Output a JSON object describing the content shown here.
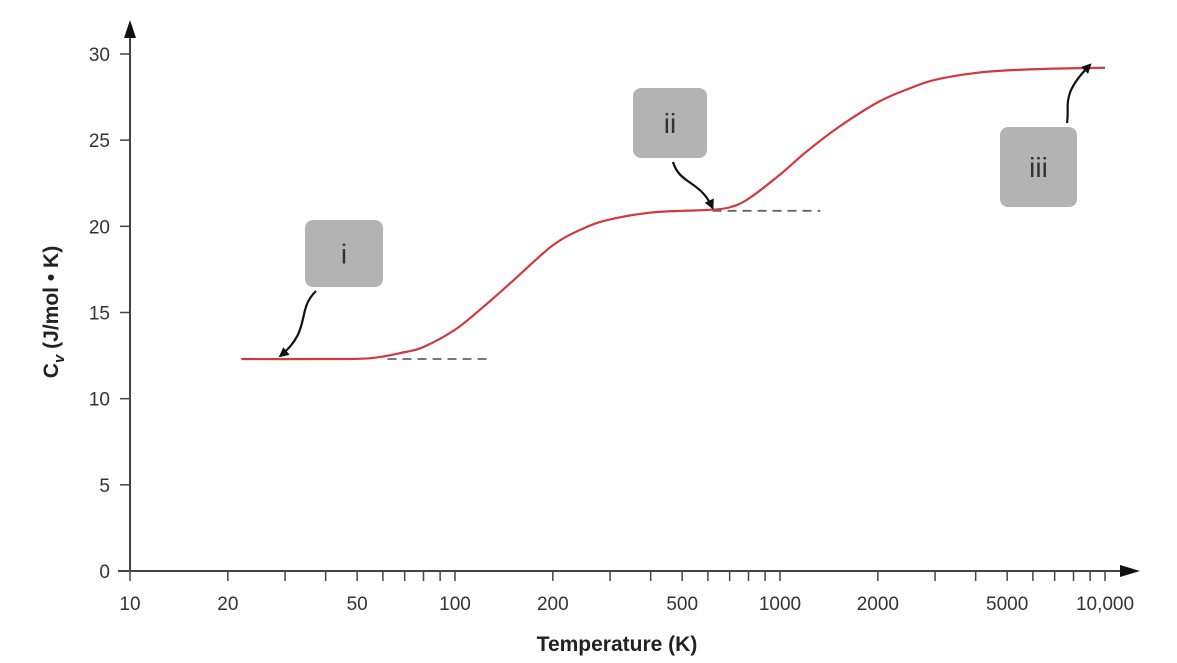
{
  "chart_data": {
    "type": "line",
    "title": "",
    "xlabel": "Temperature (K)",
    "ylabel_main": "C",
    "ylabel_sub": "v",
    "ylabel_rest": " (J/mol • K)",
    "x_scale": "log",
    "xlim": [
      10,
      10000
    ],
    "ylim": [
      0,
      30
    ],
    "grid": false,
    "x_ticks": [
      {
        "value": 10,
        "label": "10"
      },
      {
        "value": 20,
        "label": "20"
      },
      {
        "value": 50,
        "label": "50"
      },
      {
        "value": 100,
        "label": "100"
      },
      {
        "value": 200,
        "label": "200"
      },
      {
        "value": 500,
        "label": "500"
      },
      {
        "value": 1000,
        "label": "1000"
      },
      {
        "value": 2000,
        "label": "2000"
      },
      {
        "value": 5000,
        "label": "5000"
      },
      {
        "value": 10000,
        "label": "10,000"
      }
    ],
    "x_minor_ticks": [
      30,
      40,
      60,
      70,
      80,
      90,
      300,
      400,
      600,
      700,
      800,
      900,
      3000,
      4000,
      6000,
      7000,
      8000,
      9000
    ],
    "y_ticks": [
      {
        "value": 0,
        "label": "0"
      },
      {
        "value": 5,
        "label": "5"
      },
      {
        "value": 10,
        "label": "10"
      },
      {
        "value": 15,
        "label": "15"
      },
      {
        "value": 20,
        "label": "20"
      },
      {
        "value": 25,
        "label": "25"
      },
      {
        "value": 30,
        "label": "30"
      }
    ],
    "series": [
      {
        "color": "#d0393f",
        "x": [
          22,
          40,
          55,
          70,
          80,
          100,
          120,
          150,
          200,
          250,
          300,
          400,
          500,
          600,
          700,
          800,
          1000,
          1200,
          1500,
          2000,
          2500,
          3000,
          4000,
          5000,
          7000,
          10000
        ],
        "y": [
          12.3,
          12.3,
          12.35,
          12.7,
          13.0,
          14.0,
          15.2,
          16.8,
          18.9,
          19.9,
          20.4,
          20.8,
          20.9,
          20.95,
          21.1,
          21.6,
          23.0,
          24.3,
          25.7,
          27.2,
          28.0,
          28.5,
          28.9,
          29.05,
          29.15,
          29.2
        ]
      }
    ],
    "reference_lines": [
      {
        "y": 12.3,
        "x_from": 62,
        "x_to": 125,
        "style": "dashed",
        "color": "#666666"
      },
      {
        "y": 20.9,
        "x_from": 620,
        "x_to": 1330,
        "style": "dashed",
        "color": "#666666"
      }
    ],
    "annotations": [
      {
        "label": "i",
        "points_to": {
          "x": 29,
          "y": 12.3
        }
      },
      {
        "label": "ii",
        "points_to": {
          "x": 620,
          "y": 20.9
        }
      },
      {
        "label": "iii",
        "points_to": {
          "x": 9000,
          "y": 29.2
        }
      }
    ],
    "annotation_box_color": "#b3b3b3"
  }
}
